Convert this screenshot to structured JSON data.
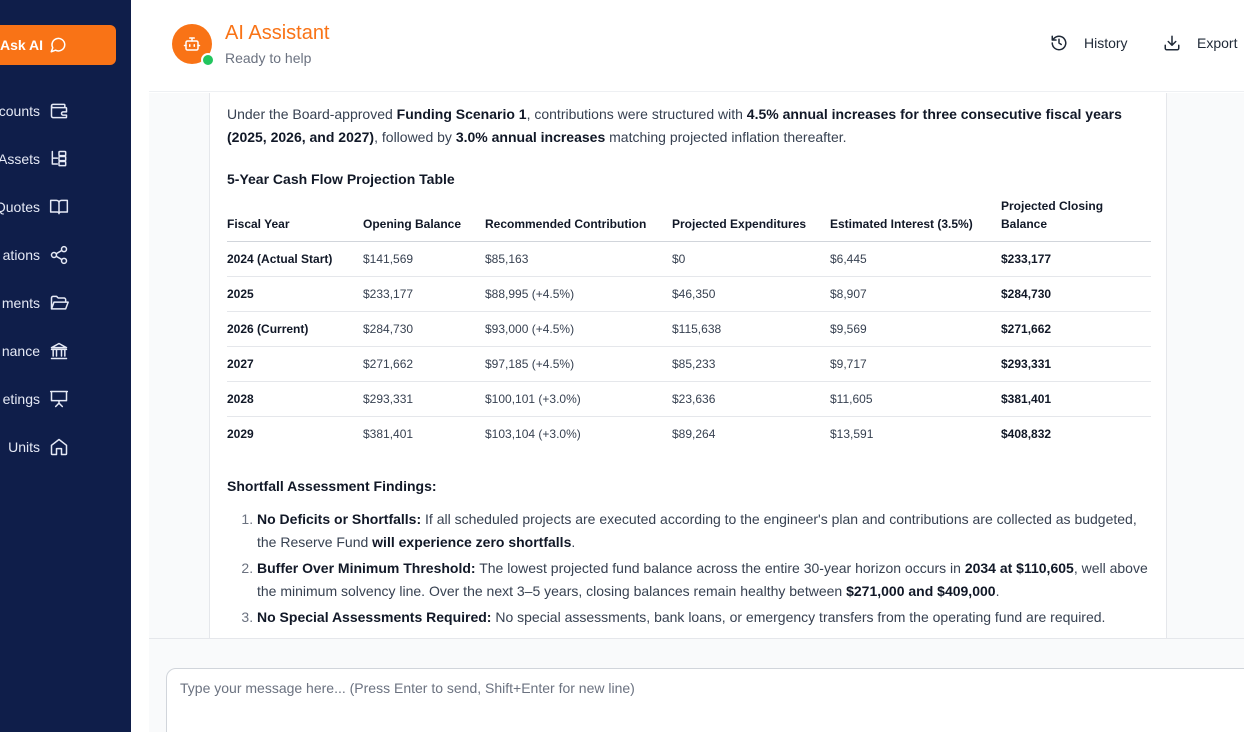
{
  "sidebar": {
    "ask_label": "Ask AI",
    "items": [
      {
        "label": "counts",
        "icon": "wallet-icon"
      },
      {
        "label": "Assets",
        "icon": "hierarchy-icon"
      },
      {
        "label": "Quotes",
        "icon": "book-icon"
      },
      {
        "label": "ations",
        "icon": "share-icon"
      },
      {
        "label": "ments",
        "icon": "folder-icon"
      },
      {
        "label": "nance",
        "icon": "bank-icon"
      },
      {
        "label": "etings",
        "icon": "presentation-icon"
      },
      {
        "label": "Units",
        "icon": "home-icon"
      }
    ]
  },
  "header": {
    "title": "AI Assistant",
    "status": "Ready to help",
    "history_label": "History",
    "export_label": "Export"
  },
  "message": {
    "intro_1": "Under the Board-approved ",
    "intro_b1": "Funding Scenario 1",
    "intro_2": ", contributions were structured with ",
    "intro_b2": "4.5% annual increases for three consecutive fiscal years (2025, 2026, and 2027)",
    "intro_3": ", followed by ",
    "intro_b3": "3.0% annual increases",
    "intro_4": " matching projected inflation thereafter.",
    "table_title": "5-Year Cash Flow Projection Table",
    "columns": [
      "Fiscal Year",
      "Opening Balance",
      "Recommended Contribution",
      "Projected Expenditures",
      "Estimated Interest (3.5%)",
      "Projected Closing Balance"
    ],
    "rows": [
      [
        "2024 (Actual Start)",
        "$141,569",
        "$85,163",
        "$0",
        "$6,445",
        "$233,177"
      ],
      [
        "2025",
        "$233,177",
        "$88,995 (+4.5%)",
        "$46,350",
        "$8,907",
        "$284,730"
      ],
      [
        "2026 (Current)",
        "$284,730",
        "$93,000 (+4.5%)",
        "$115,638",
        "$9,569",
        "$271,662"
      ],
      [
        "2027",
        "$271,662",
        "$97,185 (+4.5%)",
        "$85,233",
        "$9,717",
        "$293,331"
      ],
      [
        "2028",
        "$293,331",
        "$100,101 (+3.0%)",
        "$23,636",
        "$11,605",
        "$381,401"
      ],
      [
        "2029",
        "$381,401",
        "$103,104 (+3.0%)",
        "$89,264",
        "$13,591",
        "$408,832"
      ]
    ],
    "findings_title": "Shortfall Assessment Findings:",
    "findings": [
      {
        "b": "No Deficits or Shortfalls:",
        "t1": " If all scheduled projects are executed according to the engineer's plan and contributions are collected as budgeted, the Reserve Fund ",
        "b2": "will experience zero shortfalls",
        "t2": "."
      },
      {
        "b": "Buffer Over Minimum Threshold:",
        "t1": " The lowest projected fund balance across the entire 30-year horizon occurs in ",
        "b2": "2034 at $110,605",
        "t2": ", well above the minimum solvency line. Over the next 3–5 years, closing balances remain healthy between ",
        "b3": "$271,000 and $409,000",
        "t3": "."
      },
      {
        "b": "No Special Assessments Required:",
        "t1": " No special assessments, bank loans, or emergency transfers from the operating fund are required."
      }
    ]
  },
  "input": {
    "placeholder": "Type your message here... (Press Enter to send, Shift+Enter for new line)"
  }
}
